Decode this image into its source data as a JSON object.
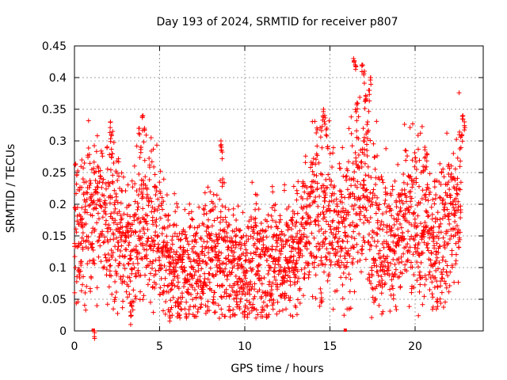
{
  "chart_data": {
    "type": "scatter",
    "title": "Day 193 of 2024, SRMTID for receiver p807",
    "xlabel": "GPS time / hours",
    "ylabel": "SRMTID / TECUs",
    "xlim": [
      0,
      24
    ],
    "ylim": [
      0,
      0.45
    ],
    "x_ticks": [
      0,
      5,
      10,
      15,
      20
    ],
    "x_tick_labels": [
      "0",
      "5",
      "10",
      "15",
      "20"
    ],
    "y_ticks": [
      0,
      0.05,
      0.1,
      0.15,
      0.2,
      0.25,
      0.3,
      0.35,
      0.4,
      0.45
    ],
    "y_tick_labels": [
      "0",
      "0.05",
      "0.1",
      "0.15",
      "0.2",
      "0.25",
      "0.3",
      "0.35",
      "0.4",
      "0.45"
    ],
    "grid": true,
    "marker": "plus",
    "color": "#ff0000",
    "series": [
      {
        "name": "SRMTID",
        "trend": [
          [
            0.0,
            0.17
          ],
          [
            0.5,
            0.16
          ],
          [
            1.0,
            0.19
          ],
          [
            1.5,
            0.18
          ],
          [
            2.0,
            0.19
          ],
          [
            2.5,
            0.17
          ],
          [
            3.0,
            0.12
          ],
          [
            3.5,
            0.15
          ],
          [
            4.0,
            0.16
          ],
          [
            4.5,
            0.18
          ],
          [
            5.0,
            0.15
          ],
          [
            5.5,
            0.11
          ],
          [
            6.0,
            0.1
          ],
          [
            6.5,
            0.1
          ],
          [
            7.0,
            0.09
          ],
          [
            7.5,
            0.1
          ],
          [
            8.0,
            0.12
          ],
          [
            8.5,
            0.11
          ],
          [
            9.0,
            0.11
          ],
          [
            9.5,
            0.1
          ],
          [
            10.0,
            0.09
          ],
          [
            10.5,
            0.11
          ],
          [
            11.0,
            0.1
          ],
          [
            11.5,
            0.11
          ],
          [
            12.0,
            0.12
          ],
          [
            12.5,
            0.11
          ],
          [
            13.0,
            0.13
          ],
          [
            13.5,
            0.16
          ],
          [
            14.0,
            0.19
          ],
          [
            14.5,
            0.2
          ],
          [
            15.0,
            0.18
          ],
          [
            15.5,
            0.17
          ],
          [
            16.0,
            0.16
          ],
          [
            16.5,
            0.21
          ],
          [
            17.0,
            0.22
          ],
          [
            17.5,
            0.18
          ],
          [
            18.0,
            0.15
          ],
          [
            18.5,
            0.14
          ],
          [
            19.0,
            0.15
          ],
          [
            19.5,
            0.16
          ],
          [
            20.0,
            0.17
          ],
          [
            20.5,
            0.17
          ],
          [
            21.0,
            0.13
          ],
          [
            21.5,
            0.16
          ],
          [
            22.0,
            0.18
          ],
          [
            22.5,
            0.2
          ],
          [
            22.7,
            0.22
          ]
        ],
        "spikes": [
          [
            2.1,
            0.33
          ],
          [
            2.15,
            0.31
          ],
          [
            2.2,
            0.28
          ],
          [
            3.3,
            0.03
          ],
          [
            3.35,
            0.04
          ],
          [
            3.8,
            0.32
          ],
          [
            4.0,
            0.34
          ],
          [
            4.1,
            0.32
          ],
          [
            3.9,
            0.29
          ],
          [
            5.6,
            0.03
          ],
          [
            8.6,
            0.3
          ],
          [
            8.65,
            0.29
          ],
          [
            8.7,
            0.24
          ],
          [
            14.6,
            0.35
          ],
          [
            14.7,
            0.34
          ],
          [
            14.8,
            0.32
          ],
          [
            14.5,
            0.06
          ],
          [
            16.4,
            0.43
          ],
          [
            16.5,
            0.42
          ],
          [
            16.9,
            0.42
          ],
          [
            17.0,
            0.41
          ],
          [
            17.4,
            0.4
          ],
          [
            17.3,
            0.38
          ],
          [
            17.1,
            0.37
          ],
          [
            16.6,
            0.36
          ],
          [
            17.2,
            0.33
          ],
          [
            17.0,
            0.3
          ],
          [
            20.6,
            0.29
          ],
          [
            20.7,
            0.28
          ],
          [
            21.3,
            0.05
          ],
          [
            22.8,
            0.34
          ],
          [
            22.9,
            0.33
          ],
          [
            22.75,
            0.31
          ],
          [
            1.2,
            0.0
          ]
        ]
      }
    ],
    "zero_markers_x": [
      1.1,
      15.9
    ]
  }
}
